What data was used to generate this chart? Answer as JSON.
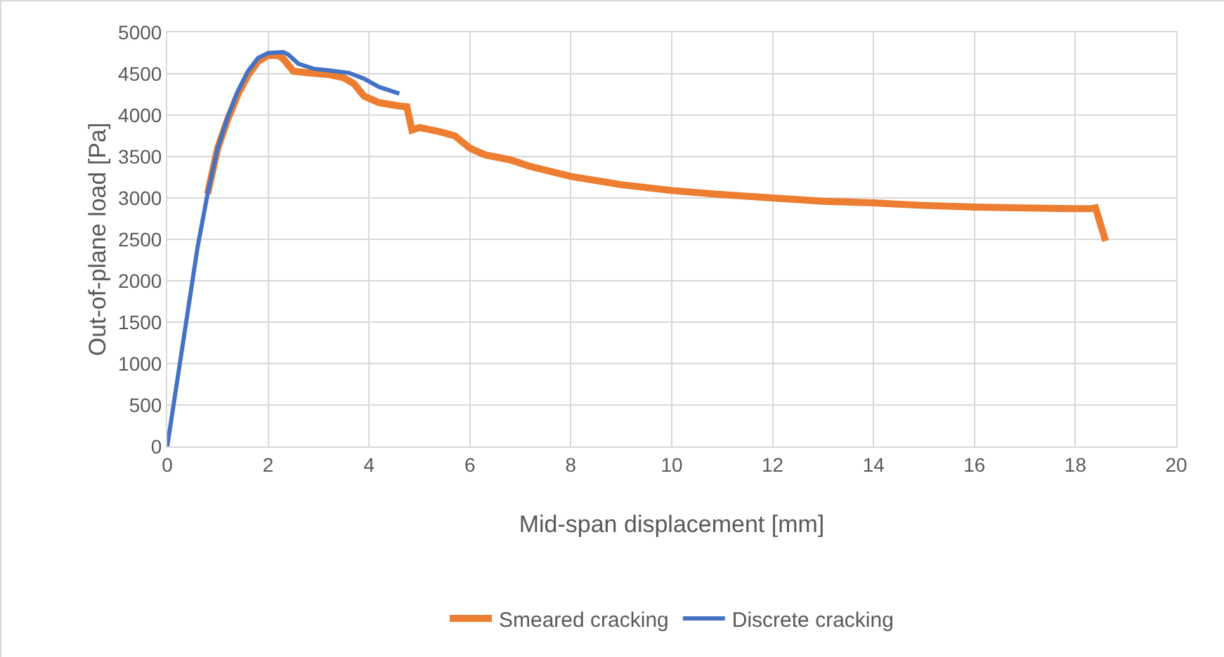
{
  "chart_data": {
    "type": "line",
    "xlabel": "Mid-span displacement [mm]",
    "ylabel": "Out-of-plane load [Pa]",
    "xlim": [
      0,
      20
    ],
    "xticks": [
      0,
      2,
      4,
      6,
      8,
      10,
      12,
      14,
      16,
      18,
      20
    ],
    "ylim": [
      0,
      5000
    ],
    "yticks": [
      0,
      500,
      1000,
      1500,
      2000,
      2500,
      3000,
      3500,
      4000,
      4500,
      5000
    ],
    "grid": true,
    "legend": "bottom",
    "marker": "none",
    "line_style": "solid",
    "series": [
      {
        "name": "Smeared cracking",
        "color": "#ed7d31",
        "x": [
          0.8,
          1.0,
          1.2,
          1.4,
          1.6,
          1.8,
          2.0,
          2.2,
          2.3,
          2.5,
          2.8,
          3.2,
          3.5,
          3.7,
          3.9,
          4.2,
          4.6,
          4.75,
          4.85,
          5.0,
          5.4,
          5.7,
          6.0,
          6.3,
          6.8,
          7.2,
          8,
          9,
          10,
          11,
          12,
          13,
          14,
          15,
          16,
          17,
          18,
          18.3,
          18.4,
          18.6
        ],
        "values": [
          3050,
          3600,
          3950,
          4250,
          4480,
          4650,
          4720,
          4720,
          4680,
          4530,
          4510,
          4490,
          4450,
          4380,
          4230,
          4150,
          4110,
          4100,
          3820,
          3850,
          3800,
          3750,
          3600,
          3520,
          3460,
          3380,
          3260,
          3160,
          3090,
          3040,
          3000,
          2960,
          2940,
          2910,
          2890,
          2880,
          2870,
          2870,
          2880,
          2480
        ]
      },
      {
        "name": "Discrete cracking",
        "color": "#4472c4",
        "x": [
          0,
          0.2,
          0.4,
          0.6,
          0.8,
          1.0,
          1.2,
          1.4,
          1.6,
          1.8,
          2.0,
          2.3,
          2.4,
          2.6,
          2.9,
          3.2,
          3.6,
          3.9,
          4.2,
          4.6
        ],
        "values": [
          0,
          800,
          1600,
          2400,
          3050,
          3600,
          3980,
          4290,
          4530,
          4690,
          4750,
          4760,
          4730,
          4620,
          4560,
          4540,
          4510,
          4440,
          4340,
          4260
        ]
      }
    ]
  }
}
